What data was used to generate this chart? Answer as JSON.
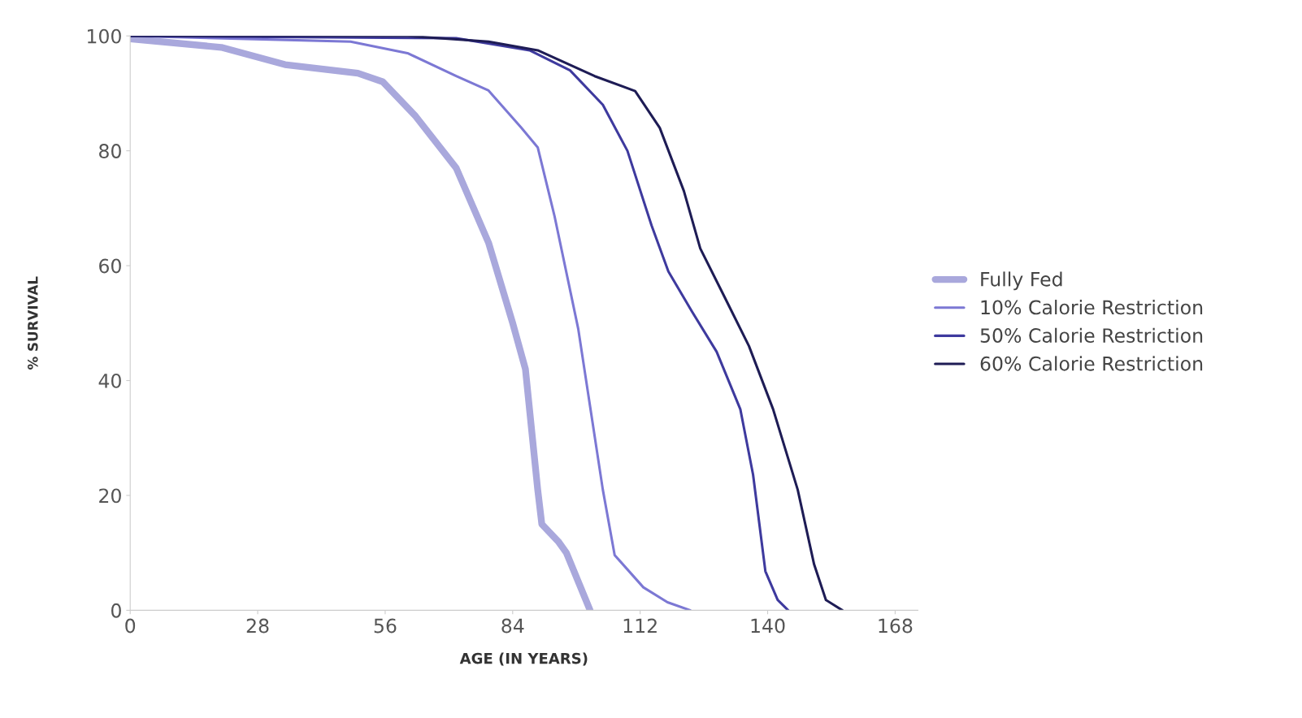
{
  "chart_data": {
    "type": "line",
    "xlabel": "AGE (IN YEARS)",
    "ylabel": "% SURVIVAL",
    "xlim": [
      0,
      173
    ],
    "xticks": [
      0,
      28,
      56,
      84,
      112,
      140,
      168
    ],
    "ylim": [
      0,
      100
    ],
    "yticks": [
      0,
      20,
      40,
      60,
      80,
      100
    ],
    "grid": false,
    "legend": "right",
    "marker": "none",
    "line_style": "solid",
    "series": [
      {
        "name": "Fully Fed",
        "color": "#a9a8dc",
        "x": [
          0,
          20,
          34,
          50,
          55.5,
          62.7,
          71.6,
          78.7,
          84,
          86.8,
          89.5,
          90.4,
          94,
          95.8,
          101
        ],
        "values": [
          99.5,
          98,
          95,
          93.5,
          92,
          86,
          77,
          64,
          50,
          42,
          21,
          15,
          12,
          10,
          0
        ]
      },
      {
        "name": "10% Calorie Restriction",
        "color": "#7c78d4",
        "x": [
          0,
          48.4,
          60.9,
          71.6,
          78.7,
          85.9,
          89.5,
          93.2,
          98.4,
          103.8,
          106.4,
          112.7,
          118,
          123
        ],
        "values": [
          100,
          99,
          97,
          93,
          90.5,
          84,
          80.6,
          68.6,
          49,
          21,
          9.6,
          4,
          1.4,
          0
        ]
      },
      {
        "name": "50% Calorie Restriction",
        "color": "#3e3a9e",
        "x": [
          0,
          71.6,
          87.7,
          96.6,
          103.8,
          109.2,
          114.5,
          118.2,
          123.4,
          128.8,
          134,
          136.8,
          139.5,
          142.2,
          144.5
        ],
        "values": [
          100,
          99.6,
          97.5,
          94,
          88,
          80,
          67,
          59,
          52,
          45,
          35,
          23.6,
          6.8,
          1.8,
          0
        ]
      },
      {
        "name": "60% Calorie Restriction",
        "color": "#1e1c55",
        "x": [
          0,
          60.9,
          78.7,
          89.5,
          102,
          110.9,
          116.3,
          121.6,
          125.2,
          130.5,
          135.9,
          141.2,
          146.6,
          150.2,
          152.8,
          156.4
        ],
        "values": [
          100,
          100,
          99,
          97.5,
          93,
          90.4,
          84,
          73,
          63,
          54.6,
          46,
          35,
          21,
          8,
          1.8,
          0
        ]
      }
    ]
  }
}
